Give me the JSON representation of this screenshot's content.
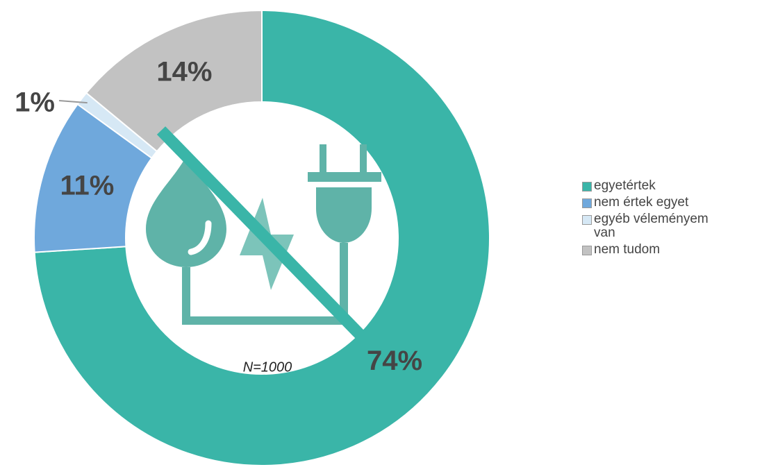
{
  "chart_data": {
    "type": "donut",
    "categories": [
      "egyetértek",
      "nem értek egyet",
      "egyéb véleményem van",
      "nem tudom"
    ],
    "values": [
      74,
      11,
      1,
      14
    ],
    "value_labels": [
      "74%",
      "11%",
      "1%",
      "14%"
    ],
    "colors": [
      "#3ab5a8",
      "#6fa8dc",
      "#d6e8f5",
      "#c2c2c2"
    ],
    "annotation": "N=1000",
    "legend": "right"
  }
}
